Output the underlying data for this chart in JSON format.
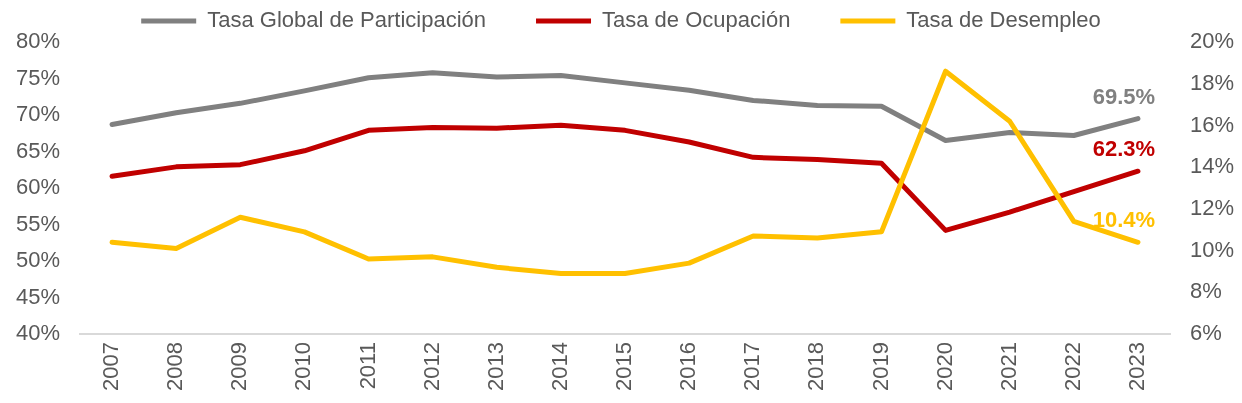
{
  "chart_data": {
    "type": "line",
    "categories": [
      "2007",
      "2008",
      "2009",
      "2010",
      "2011",
      "2012",
      "2013",
      "2014",
      "2015",
      "2016",
      "2017",
      "2018",
      "2019",
      "2020",
      "2021",
      "2022",
      "2023"
    ],
    "series": [
      {
        "name": "Tasa Global de Participación",
        "color": "#808080",
        "values": [
          68.7,
          70.3,
          71.6,
          73.3,
          75.1,
          75.8,
          75.2,
          75.4,
          74.4,
          73.4,
          72.0,
          71.3,
          71.2,
          66.5,
          67.6,
          67.2,
          69.5
        ],
        "value_labels": [
          null,
          null,
          null,
          null,
          null,
          null,
          null,
          null,
          null,
          null,
          null,
          null,
          null,
          null,
          null,
          null,
          "69.5%"
        ]
      },
      {
        "name": "Tasa de Ocupación",
        "color": "#c00000",
        "values": [
          61.6,
          62.9,
          63.2,
          65.1,
          67.9,
          68.3,
          68.2,
          68.6,
          67.9,
          66.3,
          64.2,
          63.9,
          63.4,
          54.2,
          56.7,
          59.5,
          62.3
        ],
        "value_labels": [
          null,
          null,
          null,
          null,
          null,
          null,
          null,
          null,
          null,
          null,
          null,
          null,
          null,
          null,
          null,
          null,
          "62.3%"
        ]
      },
      {
        "name": "Tasa de Desempleo",
        "color": "#ffc000",
        "axis": "y2",
        "values": [
          10.4,
          10.1,
          11.6,
          10.9,
          9.6,
          9.7,
          9.2,
          8.9,
          8.9,
          9.4,
          10.7,
          10.6,
          10.9,
          18.6,
          16.2,
          11.4,
          10.4
        ],
        "value_labels": [
          null,
          null,
          null,
          null,
          null,
          null,
          null,
          null,
          null,
          null,
          null,
          null,
          null,
          null,
          null,
          null,
          "10.4%"
        ]
      }
    ],
    "ylim": [
      40,
      80
    ],
    "yticks": [
      {
        "value": 40,
        "label": "40%"
      },
      {
        "value": 45,
        "label": "45%"
      },
      {
        "value": 50,
        "label": "50%"
      },
      {
        "value": 55,
        "label": "55%"
      },
      {
        "value": 60,
        "label": "60%"
      },
      {
        "value": 65,
        "label": "65%"
      },
      {
        "value": 70,
        "label": "70%"
      },
      {
        "value": 75,
        "label": "75%"
      },
      {
        "value": 80,
        "label": "80%"
      }
    ],
    "y2lim": [
      6,
      20
    ],
    "y2ticks": [
      {
        "value": 6,
        "label": "6%"
      },
      {
        "value": 8,
        "label": "8%"
      },
      {
        "value": 10,
        "label": "10%"
      },
      {
        "value": 12,
        "label": "12%"
      },
      {
        "value": 14,
        "label": "14%"
      },
      {
        "value": 16,
        "label": "16%"
      },
      {
        "value": 18,
        "label": "18%"
      },
      {
        "value": 20,
        "label": "20%"
      }
    ],
    "legend": "top",
    "marker": "none",
    "line_style": "solid"
  }
}
